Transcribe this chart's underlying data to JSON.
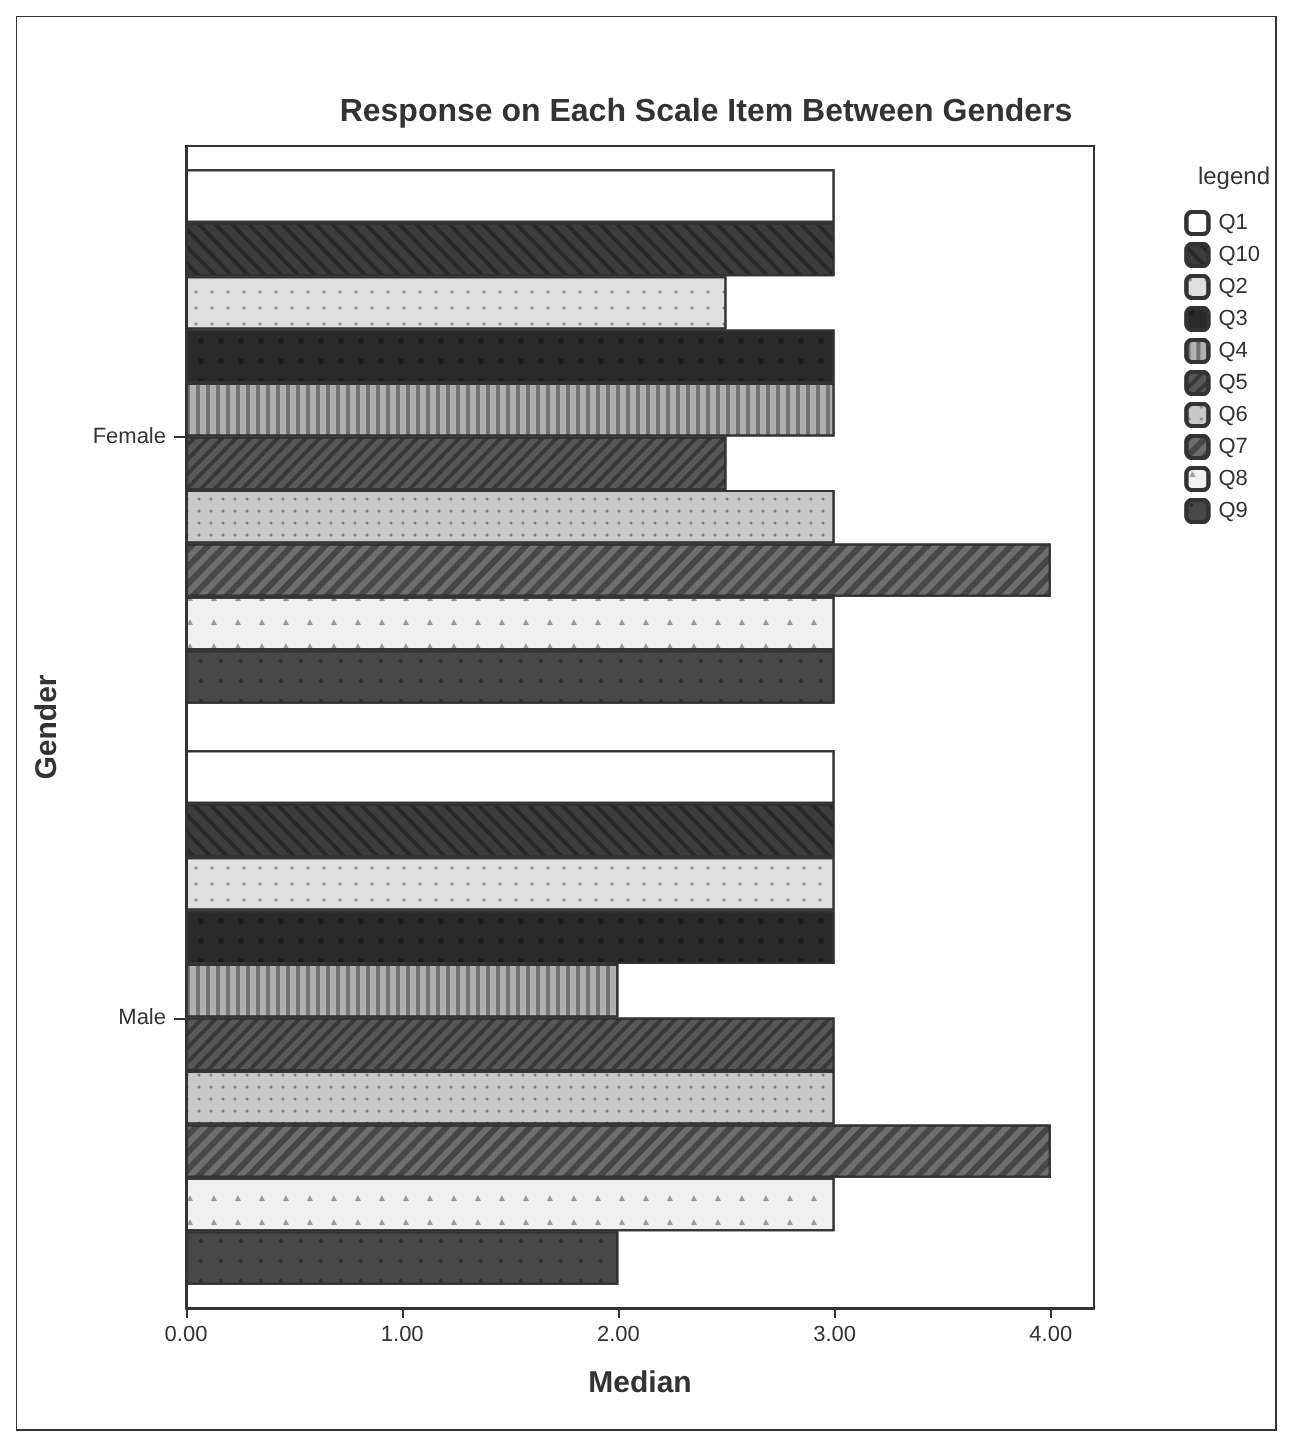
{
  "chart_data": {
    "type": "bar",
    "orientation": "horizontal",
    "title": "Response on Each Scale Item Between Genders",
    "xlabel": "Median",
    "ylabel": "Gender",
    "legend_title": "legend",
    "legend": "right",
    "categories": [
      "Female",
      "Male"
    ],
    "xlim": [
      0,
      4.2
    ],
    "xticks": [
      {
        "value": 0,
        "label": "0.00"
      },
      {
        "value": 1,
        "label": "1.00"
      },
      {
        "value": 2,
        "label": "2.00"
      },
      {
        "value": 3,
        "label": "3.00"
      },
      {
        "value": 4,
        "label": "4.00"
      }
    ],
    "grid": false,
    "series": [
      {
        "name": "Q1",
        "color": "#ffffff",
        "values": [
          3,
          3
        ]
      },
      {
        "name": "Q10",
        "color": "#3c3c3c",
        "values": [
          3,
          3
        ]
      },
      {
        "name": "Q2",
        "color": "#e0e0e0",
        "values": [
          2.5,
          3
        ]
      },
      {
        "name": "Q3",
        "color": "#2a2a2a",
        "values": [
          3,
          3
        ]
      },
      {
        "name": "Q4",
        "color": "#b0b0b0",
        "values": [
          3,
          2
        ]
      },
      {
        "name": "Q5",
        "color": "#575757",
        "values": [
          2.5,
          3
        ]
      },
      {
        "name": "Q6",
        "color": "#c8c8c8",
        "values": [
          3,
          3
        ]
      },
      {
        "name": "Q7",
        "color": "#6e6e6e",
        "values": [
          4,
          4
        ]
      },
      {
        "name": "Q8",
        "color": "#f0f0f0",
        "values": [
          3,
          3
        ]
      },
      {
        "name": "Q9",
        "color": "#484848",
        "values": [
          3,
          2
        ]
      }
    ]
  }
}
